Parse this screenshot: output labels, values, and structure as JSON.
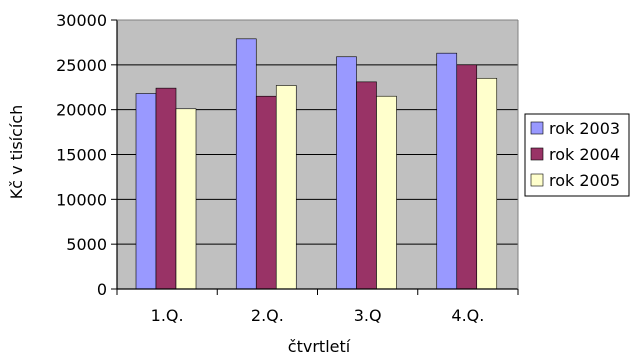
{
  "chart_data": {
    "type": "bar",
    "title": "",
    "xlabel": "čtvrtletí",
    "ylabel": "Kč v tisících",
    "categories": [
      "1.Q.",
      "2.Q.",
      "3.Q",
      "4.Q."
    ],
    "series": [
      {
        "name": "rok 2003",
        "color": "#9999ff",
        "values": [
          21800,
          27900,
          25900,
          26300
        ]
      },
      {
        "name": "rok 2004",
        "color": "#993366",
        "values": [
          22400,
          21500,
          23100,
          25000
        ]
      },
      {
        "name": "rok 2005",
        "color": "#ffffcc",
        "values": [
          20100,
          22700,
          21500,
          23500
        ]
      }
    ],
    "ylim": [
      0,
      30000
    ],
    "yticks": [
      "0",
      "5000",
      "10000",
      "15000",
      "20000",
      "25000",
      "30000"
    ],
    "grid": true,
    "legend_position": "right",
    "plot_background": "#c0c0c0"
  }
}
